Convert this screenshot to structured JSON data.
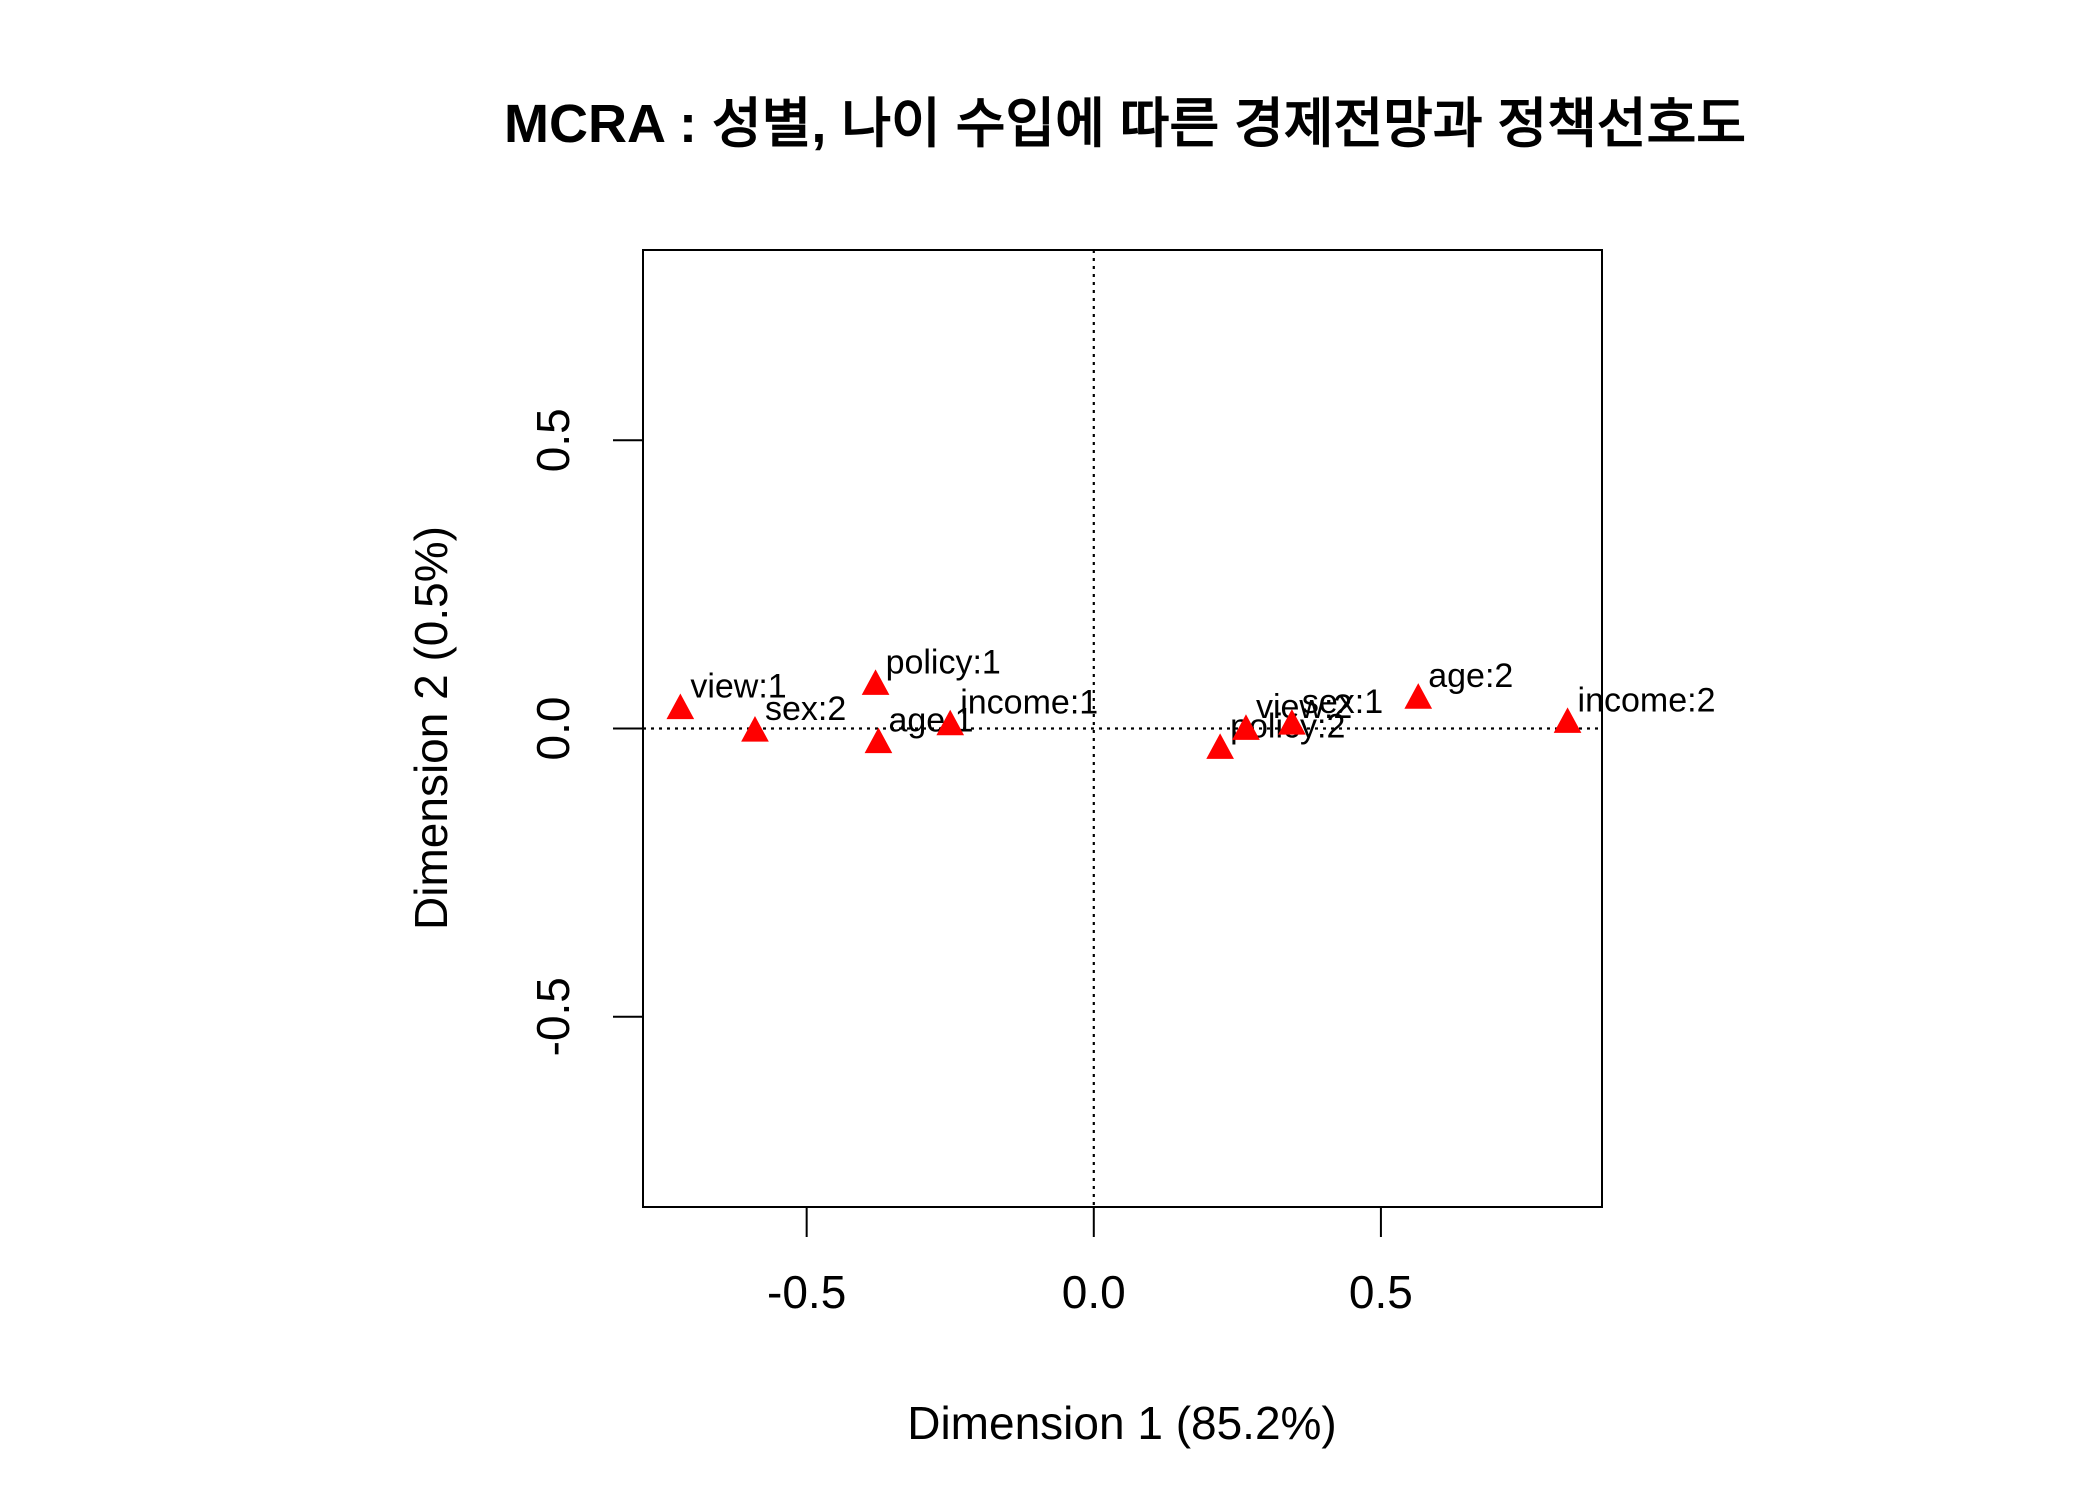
{
  "chart_data": {
    "type": "scatter",
    "title": "MCRA : 성별, 나이 수입에 따른 경제전망과 정책선호도",
    "xlabel": "Dimension 1 (85.2%)",
    "ylabel": "Dimension 2 (0.5%)",
    "xlim": [
      -0.785,
      0.885
    ],
    "ylim": [
      -0.83,
      0.83
    ],
    "xticks": [
      -0.5,
      0.0,
      0.5
    ],
    "yticks": [
      -0.5,
      0.0,
      0.5
    ],
    "xtick_labels": [
      "-0.5",
      "0.0",
      "0.5"
    ],
    "ytick_labels": [
      "-0.5",
      "0.0",
      "0.5"
    ],
    "reference_lines": {
      "x": 0.0,
      "y": 0.0,
      "style": "dotted"
    },
    "grid": false,
    "marker": "triangle",
    "marker_color": "#FF0000",
    "points": [
      {
        "label": "view:1",
        "x": -0.72,
        "y": 0.033
      },
      {
        "label": "sex:2",
        "x": -0.59,
        "y": -0.006
      },
      {
        "label": "policy:1",
        "x": -0.38,
        "y": 0.075
      },
      {
        "label": "age:1",
        "x": -0.375,
        "y": -0.026
      },
      {
        "label": "income:1",
        "x": -0.25,
        "y": 0.005
      },
      {
        "label": "policy:2",
        "x": 0.22,
        "y": -0.036
      },
      {
        "label": "view:2",
        "x": 0.265,
        "y": -0.003
      },
      {
        "label": "sex:1",
        "x": 0.345,
        "y": 0.006
      },
      {
        "label": "age:2",
        "x": 0.565,
        "y": 0.051
      },
      {
        "label": "income:2",
        "x": 0.825,
        "y": 0.009
      }
    ]
  }
}
